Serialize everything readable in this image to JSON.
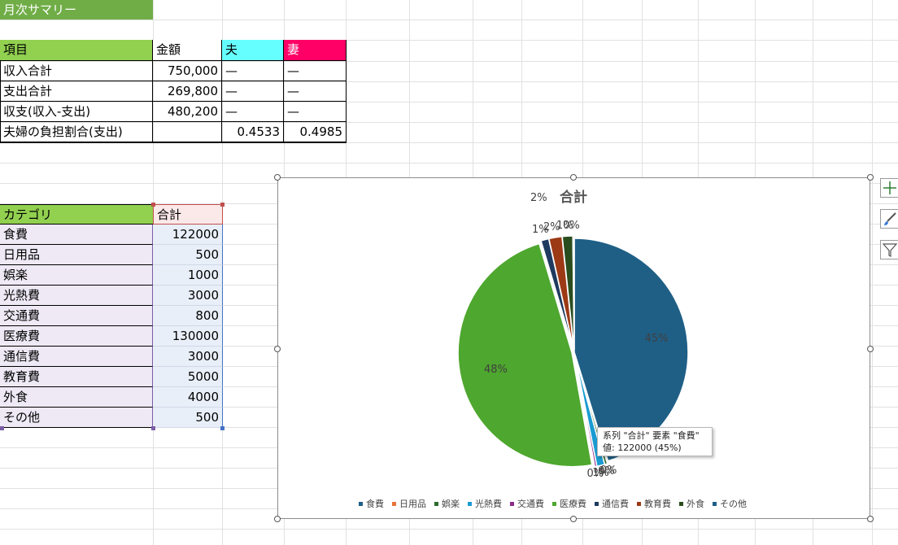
{
  "sheet_title": "月次サマリー",
  "summary": {
    "headers": [
      "項目",
      "金額",
      "夫",
      "妻"
    ],
    "rows": [
      {
        "item": "収入合計",
        "amount": "750,000",
        "husband": "—",
        "wife": "—"
      },
      {
        "item": "支出合計",
        "amount": "269,800",
        "husband": "—",
        "wife": "—"
      },
      {
        "item": "収支(収入-支出)",
        "amount": "480,200",
        "husband": "—",
        "wife": "—"
      },
      {
        "item": "夫婦の負担割合(支出)",
        "amount": "",
        "husband": "0.4533",
        "wife": "0.4985"
      }
    ]
  },
  "category_table": {
    "headers": [
      "カテゴリ",
      "合計"
    ],
    "rows": [
      {
        "category": "食費",
        "total": "122000"
      },
      {
        "category": "日用品",
        "total": "500"
      },
      {
        "category": "娯楽",
        "total": "1000"
      },
      {
        "category": "光熱費",
        "total": "3000"
      },
      {
        "category": "交通費",
        "total": "800"
      },
      {
        "category": "医療費",
        "total": "130000"
      },
      {
        "category": "通信費",
        "total": "3000"
      },
      {
        "category": "教育費",
        "total": "5000"
      },
      {
        "category": "外食",
        "total": "4000"
      },
      {
        "category": "その他",
        "total": "500"
      }
    ]
  },
  "colors": {
    "header_green": "#92d050",
    "husband_header": "#66ffff",
    "wife_header": "#ff0066",
    "category_fill": "#eee9f5",
    "total_fill": "#e9eff8"
  },
  "tooltip": {
    "line1": "系列 \"合計\" 要素 \"食費\"",
    "line2": "値: 122000 (45%)"
  },
  "chart_data": {
    "type": "pie",
    "title": "合計",
    "categories": [
      "食費",
      "日用品",
      "娯楽",
      "光熱費",
      "交通費",
      "医療費",
      "通信費",
      "教育費",
      "外食",
      "その他"
    ],
    "values": [
      122000,
      500,
      1000,
      3000,
      800,
      130000,
      3000,
      5000,
      4000,
      500
    ],
    "data_labels": [
      "45%",
      "0%",
      "0%",
      "1%",
      "0%",
      "48%",
      "1%",
      "2%",
      "1%",
      "0%"
    ],
    "colors": [
      "#1f5f86",
      "#e8743b",
      "#2e6b2e",
      "#1b9bd1",
      "#8b2a8b",
      "#4ea72e",
      "#1f3a5f",
      "#9c3a16",
      "#2a4d1e",
      "#1f5f86"
    ],
    "legend": "bottom",
    "stray_label": "2%"
  },
  "chart_tools": [
    "plus-icon",
    "brush-icon",
    "filter-icon"
  ]
}
